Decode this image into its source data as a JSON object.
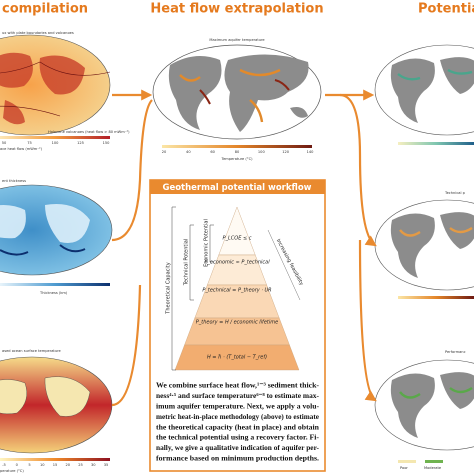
{
  "header": {
    "left": "compilation",
    "center": "Heat flow extrapolation",
    "right": "Potential"
  },
  "left_panels": [
    {
      "title": "ux with plate boundaries and volcanoes",
      "legend": "Holocene volcanoes (heat flow > 80 mWm⁻²)",
      "ticks": [
        "50",
        "75",
        "100",
        "125",
        "150"
      ],
      "axis_label": "ace heat flow (mWm⁻²)"
    },
    {
      "title": "ent thickness",
      "axis_label": "Thickness (km)"
    },
    {
      "title": "ased ocean surface temperature",
      "ticks": [
        "-5",
        "0",
        "5",
        "10",
        "15",
        "20",
        "25",
        "30",
        "35"
      ],
      "axis_label": "perature (°C)"
    }
  ],
  "center_panel": {
    "title": "Maximum aquifer temperature",
    "ticks": [
      "20",
      "40",
      "60",
      "80",
      "100",
      "120",
      "140"
    ],
    "axis_label": "Temperature (°C)"
  },
  "right_panels": [
    {
      "title": ""
    },
    {
      "title": "Technical p"
    },
    {
      "title": "Performanc",
      "legend": [
        "Poor",
        "Moderate"
      ]
    }
  ],
  "workflow": {
    "title": "Geothermal potential workflow",
    "side_labels": [
      "Theoretical Capacity",
      "Technical Potential",
      "Economic Potential",
      "Increasing feasibility"
    ],
    "levels": [
      "P_LCOE ≤ c",
      "P_economic ≈ P_technical",
      "P_technical = P_theory · UR",
      "P_theory = H / economic lifetime",
      "H = ħ · (T_total − T_ref)"
    ],
    "text": [
      "We combine surface heat flow,¹⁻³ sediment thick-",
      "ness⁴·⁵ and surface temperature⁶⁻⁸ to estimate max-",
      "imum aquifer temperature. Next, we apply a volu-",
      "metric heat-in-place methodology (above) to estimate",
      "the theoretical capacity (heat in place) and obtain",
      "the technical potential using a recovery factor. Fi-",
      "nally, we give a qualitative indication of aquifer per-",
      "formance based on minimum production depths."
    ]
  }
}
